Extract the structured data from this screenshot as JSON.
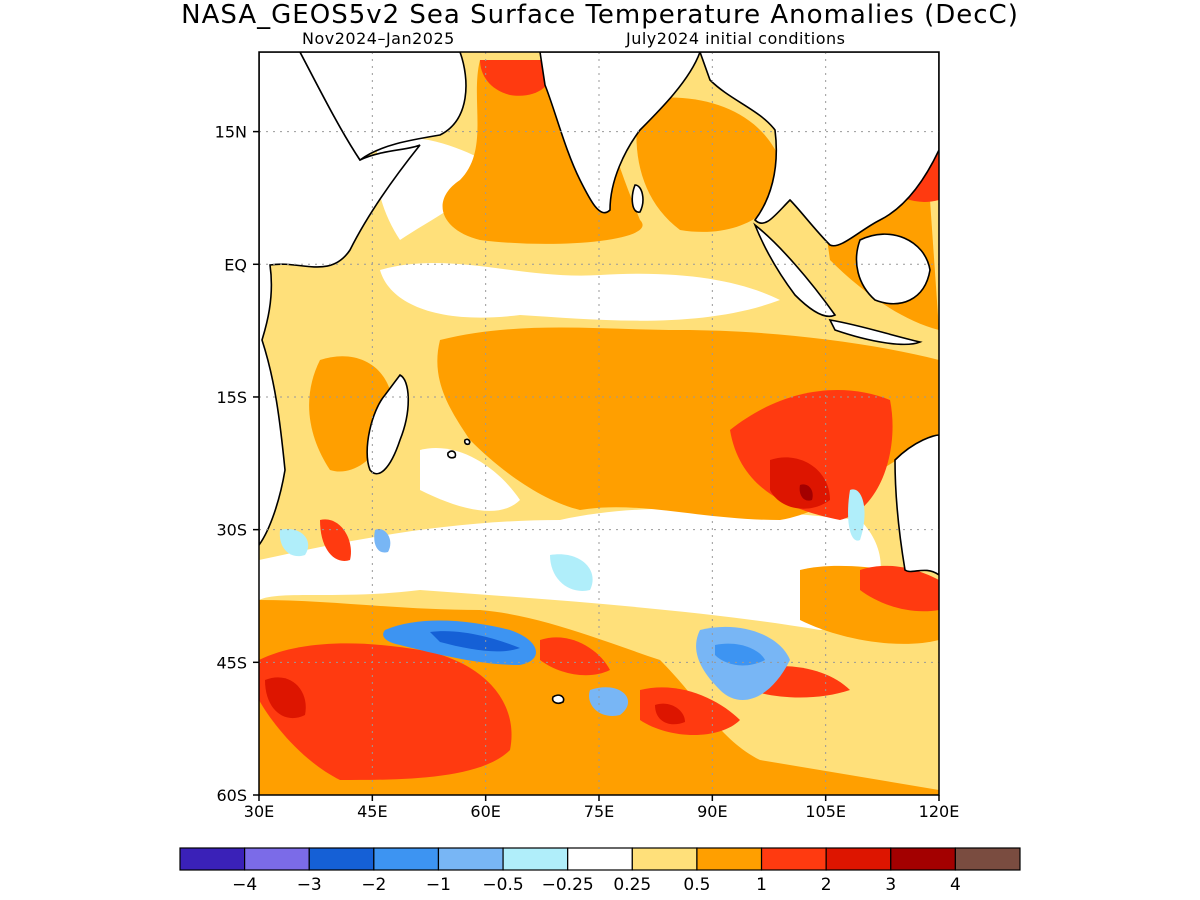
{
  "title": "NASA_GEOS5v2 Sea Surface Temperature Anomalies (DecC)",
  "subtitle_left": "Nov2024–Jan2025",
  "subtitle_right": "July2024 initial conditions",
  "map": {
    "lon_range": [
      30,
      120
    ],
    "lat_range": [
      -60,
      24
    ],
    "grid": true,
    "lat_ticks": [
      {
        "value": 15,
        "label": "15N"
      },
      {
        "value": 0,
        "label": "EQ"
      },
      {
        "value": -15,
        "label": "15S"
      },
      {
        "value": -30,
        "label": "30S"
      },
      {
        "value": -45,
        "label": "45S"
      },
      {
        "value": -60,
        "label": "60S"
      }
    ],
    "lon_ticks": [
      {
        "value": 30,
        "label": "30E"
      },
      {
        "value": 45,
        "label": "45E"
      },
      {
        "value": 60,
        "label": "60E"
      },
      {
        "value": 75,
        "label": "75E"
      },
      {
        "value": 90,
        "label": "90E"
      },
      {
        "value": 105,
        "label": "105E"
      },
      {
        "value": 120,
        "label": "120E"
      }
    ]
  },
  "colorbar": {
    "colors": [
      "#3a21b8",
      "#7b6be8",
      "#1560d6",
      "#3d94f2",
      "#78b6f5",
      "#b0eefa",
      "#ffffff",
      "#ffe07a",
      "#ff9f00",
      "#ff3a10",
      "#dd1500",
      "#a30000",
      "#7a4c40"
    ],
    "labels": [
      "−4",
      "−3",
      "−2",
      "−1",
      "−0.5",
      "−0.25",
      "0.25",
      "0.5",
      "1",
      "2",
      "3",
      "4"
    ]
  }
}
